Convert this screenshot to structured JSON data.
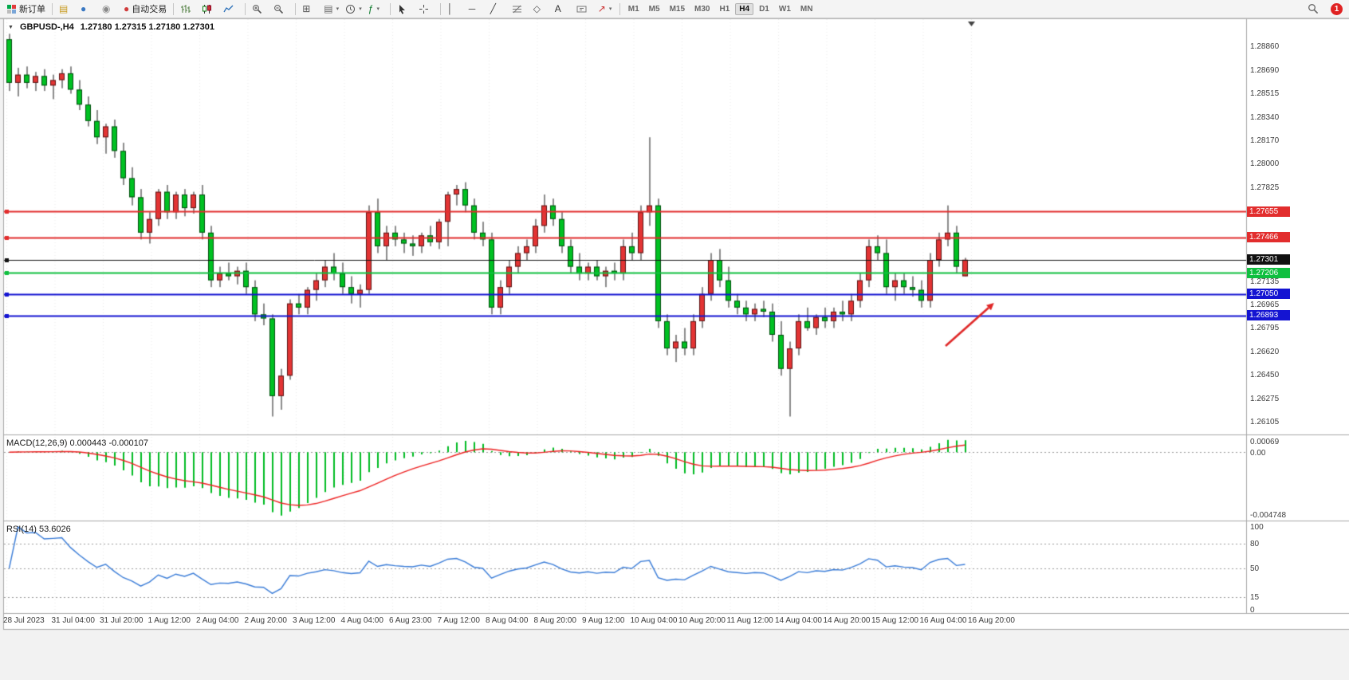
{
  "toolbar": {
    "badge": "1",
    "buttons": [
      {
        "name": "new-order-button",
        "icon": "new-order",
        "label": "新订单"
      },
      {
        "sep": true
      },
      {
        "name": "templates-button",
        "icon": "template"
      },
      {
        "name": "community-button",
        "icon": "community"
      },
      {
        "name": "support-button",
        "icon": "support"
      },
      {
        "name": "autotrade-button",
        "icon": "autotrade",
        "label": "自动交易"
      },
      {
        "sep": true
      },
      {
        "name": "bar-chart-type-button",
        "icon": "bars"
      },
      {
        "name": "candlestick-chart-type-button",
        "icon": "candles"
      },
      {
        "name": "line-chart-type-button",
        "icon": "linechart"
      },
      {
        "sep": true
      },
      {
        "name": "zoom-in-button",
        "icon": "zoom-in"
      },
      {
        "name": "zoom-out-button",
        "icon": "zoom-out"
      },
      {
        "sep": true
      },
      {
        "name": "tile-windows-button",
        "icon": "tile"
      },
      {
        "name": "profiles-button",
        "icon": "profiles",
        "caret": true
      },
      {
        "name": "period-button",
        "icon": "clock",
        "caret": true
      },
      {
        "name": "indicators-button",
        "icon": "indicators",
        "caret": true
      },
      {
        "sep": true
      },
      {
        "name": "cursor-button",
        "icon": "cursor"
      },
      {
        "name": "crosshair-button",
        "icon": "crosshair"
      },
      {
        "sep": true
      },
      {
        "name": "vertical-line-button",
        "icon": "vline"
      },
      {
        "name": "horizontal-line-button",
        "icon": "hline"
      },
      {
        "name": "trendline-button",
        "icon": "trendline"
      },
      {
        "name": "fibonacci-button",
        "icon": "fibo"
      },
      {
        "name": "shapes-button",
        "icon": "shapes"
      },
      {
        "name": "text-button",
        "icon": "text"
      },
      {
        "name": "text-label-button",
        "icon": "textlabel"
      },
      {
        "name": "arrows-button",
        "icon": "arrowtool",
        "caret": true
      },
      {
        "sep": true
      }
    ],
    "timeframes": [
      {
        "label": "M1"
      },
      {
        "label": "M5"
      },
      {
        "label": "M15"
      },
      {
        "label": "M30"
      },
      {
        "label": "H1"
      },
      {
        "label": "H4",
        "active": true
      },
      {
        "label": "D1"
      },
      {
        "label": "W1"
      },
      {
        "label": "MN"
      }
    ]
  },
  "chart_data": {
    "type": "candlestick",
    "symbol_timeframe_label": "GBPUSD-,H4",
    "quote_line": "1.27180 1.27315 1.27180 1.27301",
    "current_bar": {
      "open": 1.2718,
      "high": 1.27315,
      "low": 1.2718,
      "close": 1.27301
    },
    "colors": {
      "up": "#e33434",
      "down": "#00c122",
      "wick": "#1a1a1a",
      "macd_bar": "#00bb22",
      "macd_signal": "#ee2222",
      "rsi_line": "#3b7dd8",
      "arrow": "#e02828"
    },
    "candles": [
      [
        1.2892,
        1.2896,
        1.2854,
        1.286
      ],
      [
        1.286,
        1.2871,
        1.285,
        1.2866
      ],
      [
        1.2866,
        1.2872,
        1.2856,
        1.286
      ],
      [
        1.286,
        1.2868,
        1.2854,
        1.2865
      ],
      [
        1.2865,
        1.287,
        1.2854,
        1.2858
      ],
      [
        1.2858,
        1.2866,
        1.2848,
        1.2862
      ],
      [
        1.2862,
        1.287,
        1.2856,
        1.2867
      ],
      [
        1.2867,
        1.2872,
        1.2852,
        1.2855
      ],
      [
        1.2855,
        1.2862,
        1.284,
        1.2844
      ],
      [
        1.2844,
        1.285,
        1.2828,
        1.2832
      ],
      [
        1.2832,
        1.284,
        1.2815,
        1.282
      ],
      [
        1.282,
        1.283,
        1.2808,
        1.2828
      ],
      [
        1.2828,
        1.2833,
        1.2805,
        1.281
      ],
      [
        1.281,
        1.2816,
        1.2785,
        1.279
      ],
      [
        1.279,
        1.2798,
        1.277,
        1.2776
      ],
      [
        1.2776,
        1.2782,
        1.2745,
        1.275
      ],
      [
        1.275,
        1.2765,
        1.2742,
        1.276
      ],
      [
        1.276,
        1.2782,
        1.2755,
        1.278
      ],
      [
        1.278,
        1.2785,
        1.276,
        1.2765
      ],
      [
        1.2765,
        1.278,
        1.276,
        1.2778
      ],
      [
        1.2778,
        1.2782,
        1.2762,
        1.2768
      ],
      [
        1.2768,
        1.278,
        1.2764,
        1.2778
      ],
      [
        1.2778,
        1.2785,
        1.2745,
        1.275
      ],
      [
        1.275,
        1.2755,
        1.271,
        1.2715
      ],
      [
        1.2715,
        1.2725,
        1.271,
        1.272
      ],
      [
        1.272,
        1.2728,
        1.2715,
        1.2718
      ],
      [
        1.2718,
        1.2725,
        1.2712,
        1.2722
      ],
      [
        1.2722,
        1.2728,
        1.2705,
        1.271
      ],
      [
        1.271,
        1.2715,
        1.2685,
        1.269
      ],
      [
        1.269,
        1.2698,
        1.2682,
        1.2687
      ],
      [
        1.2687,
        1.269,
        1.2615,
        1.263
      ],
      [
        1.263,
        1.265,
        1.262,
        1.2645
      ],
      [
        1.2645,
        1.2701,
        1.2642,
        1.2698
      ],
      [
        1.2698,
        1.2705,
        1.269,
        1.2695
      ],
      [
        1.2695,
        1.271,
        1.269,
        1.2708
      ],
      [
        1.2708,
        1.272,
        1.27,
        1.2715
      ],
      [
        1.2715,
        1.273,
        1.271,
        1.2725
      ],
      [
        1.2725,
        1.2735,
        1.2715,
        1.272
      ],
      [
        1.272,
        1.2728,
        1.2705,
        1.271
      ],
      [
        1.271,
        1.2718,
        1.2698,
        1.2705
      ],
      [
        1.2705,
        1.2712,
        1.2695,
        1.2708
      ],
      [
        1.2708,
        1.277,
        1.2705,
        1.2765
      ],
      [
        1.2765,
        1.2775,
        1.2735,
        1.274
      ],
      [
        1.274,
        1.2755,
        1.273,
        1.275
      ],
      [
        1.275,
        1.2755,
        1.274,
        1.2745
      ],
      [
        1.2745,
        1.275,
        1.2735,
        1.2742
      ],
      [
        1.2742,
        1.2748,
        1.2733,
        1.274
      ],
      [
        1.274,
        1.275,
        1.2735,
        1.2748
      ],
      [
        1.2748,
        1.2755,
        1.274,
        1.2743
      ],
      [
        1.2743,
        1.276,
        1.2738,
        1.2758
      ],
      [
        1.2758,
        1.278,
        1.274,
        1.2778
      ],
      [
        1.2778,
        1.2785,
        1.277,
        1.2782
      ],
      [
        1.2782,
        1.2787,
        1.2765,
        1.277
      ],
      [
        1.277,
        1.2775,
        1.2745,
        1.275
      ],
      [
        1.275,
        1.2758,
        1.274,
        1.2745
      ],
      [
        1.2745,
        1.275,
        1.269,
        1.2695
      ],
      [
        1.2695,
        1.2715,
        1.269,
        1.271
      ],
      [
        1.271,
        1.273,
        1.2705,
        1.2725
      ],
      [
        1.2725,
        1.274,
        1.272,
        1.2735
      ],
      [
        1.2735,
        1.2745,
        1.273,
        1.274
      ],
      [
        1.274,
        1.276,
        1.2735,
        1.2755
      ],
      [
        1.2755,
        1.2778,
        1.275,
        1.277
      ],
      [
        1.277,
        1.2775,
        1.2755,
        1.276
      ],
      [
        1.276,
        1.2765,
        1.2735,
        1.274
      ],
      [
        1.274,
        1.2745,
        1.272,
        1.2725
      ],
      [
        1.2725,
        1.2735,
        1.2715,
        1.272
      ],
      [
        1.272,
        1.2728,
        1.2715,
        1.2725
      ],
      [
        1.2725,
        1.273,
        1.2715,
        1.2718
      ],
      [
        1.2718,
        1.2725,
        1.271,
        1.2722
      ],
      [
        1.2722,
        1.2728,
        1.2715,
        1.272
      ],
      [
        1.272,
        1.2745,
        1.2715,
        1.274
      ],
      [
        1.274,
        1.275,
        1.273,
        1.2735
      ],
      [
        1.2735,
        1.277,
        1.273,
        1.2765
      ],
      [
        1.2765,
        1.282,
        1.2755,
        1.277
      ],
      [
        1.277,
        1.2775,
        1.268,
        1.2685
      ],
      [
        1.2685,
        1.269,
        1.266,
        1.2665
      ],
      [
        1.2665,
        1.2675,
        1.2655,
        1.267
      ],
      [
        1.267,
        1.268,
        1.266,
        1.2665
      ],
      [
        1.2665,
        1.269,
        1.266,
        1.2685
      ],
      [
        1.2685,
        1.271,
        1.268,
        1.2705
      ],
      [
        1.2705,
        1.2735,
        1.27,
        1.273
      ],
      [
        1.273,
        1.2738,
        1.271,
        1.2715
      ],
      [
        1.2715,
        1.2725,
        1.2695,
        1.27
      ],
      [
        1.27,
        1.2705,
        1.269,
        1.2695
      ],
      [
        1.2695,
        1.27,
        1.2685,
        1.269
      ],
      [
        1.269,
        1.2698,
        1.2685,
        1.2694
      ],
      [
        1.2694,
        1.27,
        1.2688,
        1.2692
      ],
      [
        1.2692,
        1.2698,
        1.267,
        1.2675
      ],
      [
        1.2675,
        1.2685,
        1.2645,
        1.265
      ],
      [
        1.265,
        1.267,
        1.2615,
        1.2665
      ],
      [
        1.2665,
        1.269,
        1.266,
        1.2685
      ],
      [
        1.2685,
        1.2695,
        1.2678,
        1.268
      ],
      [
        1.268,
        1.269,
        1.2675,
        1.2688
      ],
      [
        1.2688,
        1.2695,
        1.268,
        1.2685
      ],
      [
        1.2685,
        1.2695,
        1.268,
        1.2692
      ],
      [
        1.2692,
        1.27,
        1.2685,
        1.269
      ],
      [
        1.269,
        1.2705,
        1.2685,
        1.27
      ],
      [
        1.27,
        1.272,
        1.2695,
        1.2715
      ],
      [
        1.2715,
        1.2745,
        1.271,
        1.274
      ],
      [
        1.274,
        1.2748,
        1.273,
        1.2735
      ],
      [
        1.2735,
        1.2745,
        1.2705,
        1.271
      ],
      [
        1.271,
        1.272,
        1.27,
        1.2715
      ],
      [
        1.2715,
        1.272,
        1.2705,
        1.271
      ],
      [
        1.271,
        1.2718,
        1.2703,
        1.2708
      ],
      [
        1.2708,
        1.2715,
        1.2695,
        1.27
      ],
      [
        1.27,
        1.2735,
        1.2695,
        1.273
      ],
      [
        1.273,
        1.275,
        1.2725,
        1.2745
      ],
      [
        1.2745,
        1.277,
        1.274,
        1.275
      ],
      [
        1.275,
        1.2755,
        1.272,
        1.2725
      ],
      [
        1.2718,
        1.27315,
        1.2718,
        1.27301
      ]
    ],
    "price_axis_ticks": [
      "1.28860",
      "1.28690",
      "1.28515",
      "1.28340",
      "1.28170",
      "1.28000",
      "1.27825",
      "1.27135",
      "1.26965",
      "1.26795",
      "1.26620",
      "1.26450",
      "1.26275",
      "1.26105"
    ],
    "price_tags": [
      {
        "value": "1.27655",
        "price": 1.27655,
        "bg": "#e22d2d",
        "line": "#e22d2d",
        "width": 2
      },
      {
        "value": "1.27466",
        "price": 1.27466,
        "bg": "#e22d2d",
        "line": "#e22d2d",
        "width": 2
      },
      {
        "value": "1.27301",
        "price": 1.27301,
        "bg": "#111111",
        "line": "#111111",
        "width": 1
      },
      {
        "value": "1.27206",
        "price": 1.27206,
        "bg": "#0fbf3f",
        "line": "#0fbf3f",
        "width": 2
      },
      {
        "value": "1.27050",
        "price": 1.2705,
        "bg": "#1414d2",
        "line": "#1414d2",
        "width": 2
      },
      {
        "value": "1.26893",
        "price": 1.26893,
        "bg": "#1414d2",
        "line": "#1414d2",
        "width": 2
      }
    ],
    "time_axis": [
      "28 Jul 2023",
      "31 Jul 04:00",
      "31 Jul 20:00",
      "1 Aug 12:00",
      "2 Aug 04:00",
      "2 Aug 20:00",
      "3 Aug 12:00",
      "4 Aug 04:00",
      "6 Aug 23:00",
      "7 Aug 12:00",
      "8 Aug 04:00",
      "8 Aug 20:00",
      "9 Aug 12:00",
      "10 Aug 04:00",
      "10 Aug 20:00",
      "11 Aug 12:00",
      "14 Aug 04:00",
      "14 Aug 20:00",
      "15 Aug 12:00",
      "16 Aug 04:00",
      "16 Aug 20:00"
    ],
    "macd": {
      "label": "MACD(12,26,9)",
      "main_value": "0.000443",
      "signal_value": "-0.000107",
      "params": [
        12,
        26,
        9
      ],
      "axis_labels": {
        "top": "0.00069",
        "zero": "0.00",
        "bottom": "-0.004748"
      }
    },
    "rsi": {
      "label": "RSI(14)",
      "value": "53.6026",
      "period": 14,
      "axis_labels": [
        "100",
        "80",
        "50",
        "15",
        "0"
      ],
      "axis_values": [
        100,
        80,
        50,
        15,
        0
      ],
      "levels": [
        80,
        50,
        15
      ]
    },
    "annotation_arrow": {
      "from": [
        1186,
        434
      ],
      "to": [
        1240,
        386
      ],
      "color": "#e02828"
    }
  }
}
